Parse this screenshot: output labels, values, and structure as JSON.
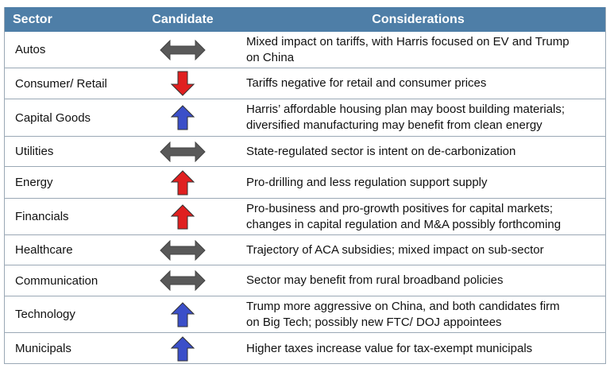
{
  "header": {
    "sector": "Sector",
    "candidate": "Candidate",
    "considerations": "Considerations"
  },
  "colors": {
    "header_bg": "#4e7ea7",
    "neutral": "#595959",
    "negative": "#e02020",
    "positive": "#e02020",
    "blue": "#3b4fc9"
  },
  "rows": [
    {
      "sector": "Autos",
      "arrow": "double-horizontal-arrow-icon",
      "lines": [
        "Mixed impact on tariffs, with Harris focused on EV and Trump",
        "on China"
      ]
    },
    {
      "sector": "Consumer/ Retail",
      "arrow": "red-down-arrow-icon",
      "lines": [
        "Tariffs negative for retail and consumer prices"
      ]
    },
    {
      "sector": "Capital Goods",
      "arrow": "blue-up-arrow-icon",
      "lines": [
        "Harris’ affordable housing plan may boost building materials;",
        "diversified manufacturing may benefit from clean energy"
      ]
    },
    {
      "sector": "Utilities",
      "arrow": "double-horizontal-arrow-icon",
      "lines": [
        "State-regulated sector is intent on de-carbonization"
      ]
    },
    {
      "sector": "Energy",
      "arrow": "red-up-arrow-icon",
      "lines": [
        "Pro-drilling and less regulation support supply"
      ]
    },
    {
      "sector": "Financials",
      "arrow": "red-up-arrow-icon",
      "lines": [
        "Pro-business and pro-growth positives for capital markets;",
        "changes in capital regulation and M&A possibly forthcoming"
      ]
    },
    {
      "sector": "Healthcare",
      "arrow": "double-horizontal-arrow-icon",
      "lines": [
        "Trajectory of ACA subsidies; mixed impact on sub-sector"
      ]
    },
    {
      "sector": "Communication",
      "arrow": "double-horizontal-arrow-icon",
      "lines": [
        "Sector may benefit from rural broadband policies"
      ]
    },
    {
      "sector": "Technology",
      "arrow": "blue-up-arrow-icon",
      "lines": [
        "Trump more aggressive on China, and both candidates firm",
        "on Big Tech; possibly new FTC/ DOJ appointees"
      ]
    },
    {
      "sector": "Municipals",
      "arrow": "blue-up-arrow-icon",
      "lines": [
        "Higher taxes increase value for tax-exempt municipals"
      ]
    }
  ]
}
